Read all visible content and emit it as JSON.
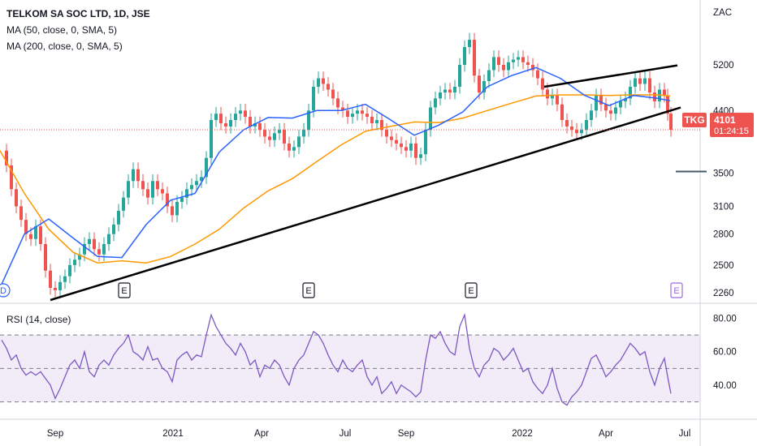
{
  "legend": {
    "title": "TELKOM SA SOC LTD, 1D, JSE",
    "ma50": "MA (50, close, 0, SMA, 5)",
    "ma200": "MA (200, close, 0, SMA, 5)",
    "rsi": "RSI (14, close)"
  },
  "price_tag": {
    "symbol": "TKG",
    "price": "4101",
    "countdown": "01:24:15"
  },
  "colors": {
    "up": "#26a69a",
    "down": "#ef5350",
    "ma50": "#2962ff",
    "ma200": "#ff9800",
    "trendline": "#000000",
    "rsi": "#7e57c2",
    "rsi_band": "#ede7f6",
    "price_line": "#ef5350"
  },
  "chart_data": {
    "type": "candlestick",
    "price_axis": {
      "unit": "ZAC",
      "ticks": [
        5200,
        4400,
        3500,
        3100,
        2800,
        2500,
        2260
      ],
      "scale": "log",
      "range": [
        2200,
        6400
      ]
    },
    "rsi_axis": {
      "ticks": [
        "80.00",
        "60.00",
        "40.00"
      ],
      "range": [
        23,
        87
      ],
      "bands": [
        70,
        50,
        30
      ]
    },
    "time_axis": {
      "labels": [
        "Sep",
        "2021",
        "Apr",
        "Jul",
        "Sep",
        "2022",
        "Apr",
        "Jul"
      ]
    },
    "last_price": 4101,
    "earnings_markers": [
      "E",
      "E",
      "E",
      "E"
    ],
    "dividend_marker": "D",
    "ma50_points": [
      [
        0,
        2300
      ],
      [
        30,
        2800
      ],
      [
        60,
        2960
      ],
      [
        90,
        2760
      ],
      [
        120,
        2580
      ],
      [
        150,
        2570
      ],
      [
        180,
        2900
      ],
      [
        210,
        3170
      ],
      [
        240,
        3250
      ],
      [
        270,
        3780
      ],
      [
        300,
        4100
      ],
      [
        330,
        4290
      ],
      [
        360,
        4280
      ],
      [
        390,
        4400
      ],
      [
        420,
        4400
      ],
      [
        450,
        4500
      ],
      [
        480,
        4260
      ],
      [
        510,
        4020
      ],
      [
        540,
        4170
      ],
      [
        570,
        4380
      ],
      [
        600,
        4800
      ],
      [
        630,
        5000
      ],
      [
        660,
        5150
      ],
      [
        690,
        4950
      ],
      [
        720,
        4650
      ],
      [
        750,
        4480
      ],
      [
        780,
        4650
      ],
      [
        810,
        4600
      ],
      [
        825,
        4560
      ]
    ],
    "ma200_points": [
      [
        0,
        3800
      ],
      [
        30,
        3250
      ],
      [
        60,
        2850
      ],
      [
        90,
        2620
      ],
      [
        120,
        2520
      ],
      [
        150,
        2540
      ],
      [
        180,
        2520
      ],
      [
        210,
        2580
      ],
      [
        240,
        2700
      ],
      [
        270,
        2850
      ],
      [
        300,
        3080
      ],
      [
        330,
        3280
      ],
      [
        360,
        3430
      ],
      [
        390,
        3650
      ],
      [
        420,
        3880
      ],
      [
        450,
        4080
      ],
      [
        480,
        4150
      ],
      [
        510,
        4220
      ],
      [
        540,
        4210
      ],
      [
        570,
        4280
      ],
      [
        600,
        4400
      ],
      [
        630,
        4520
      ],
      [
        660,
        4640
      ],
      [
        690,
        4660
      ],
      [
        720,
        4660
      ],
      [
        750,
        4650
      ],
      [
        780,
        4660
      ],
      [
        810,
        4660
      ],
      [
        825,
        4640
      ]
    ],
    "trendlines": [
      {
        "from": [
          62,
          2200
        ],
        "to": [
          838,
          4450
        ]
      },
      {
        "from": [
          670,
          4800
        ],
        "to": [
          834,
          5190
        ]
      }
    ],
    "price_path": [
      [
        2,
        3800
      ],
      [
        8,
        3600
      ],
      [
        14,
        3300
      ],
      [
        20,
        3100
      ],
      [
        26,
        2950
      ],
      [
        32,
        2800
      ],
      [
        38,
        2750
      ],
      [
        44,
        2880
      ],
      [
        50,
        2700
      ],
      [
        56,
        2450
      ],
      [
        62,
        2300
      ],
      [
        68,
        2280
      ],
      [
        74,
        2350
      ],
      [
        80,
        2400
      ],
      [
        86,
        2500
      ],
      [
        92,
        2550
      ],
      [
        98,
        2600
      ],
      [
        104,
        2700
      ],
      [
        110,
        2750
      ],
      [
        116,
        2650
      ],
      [
        122,
        2600
      ],
      [
        128,
        2700
      ],
      [
        134,
        2800
      ],
      [
        140,
        2900
      ],
      [
        146,
        3050
      ],
      [
        152,
        3200
      ],
      [
        158,
        3400
      ],
      [
        164,
        3550
      ],
      [
        170,
        3400
      ],
      [
        176,
        3300
      ],
      [
        182,
        3200
      ],
      [
        188,
        3400
      ],
      [
        194,
        3300
      ],
      [
        200,
        3250
      ],
      [
        206,
        3100
      ],
      [
        212,
        3000
      ],
      [
        218,
        3150
      ],
      [
        224,
        3200
      ],
      [
        230,
        3300
      ],
      [
        236,
        3350
      ],
      [
        242,
        3400
      ],
      [
        248,
        3450
      ],
      [
        254,
        3700
      ],
      [
        260,
        4250
      ],
      [
        266,
        4350
      ],
      [
        272,
        4200
      ],
      [
        278,
        4150
      ],
      [
        284,
        4250
      ],
      [
        290,
        4350
      ],
      [
        296,
        4400
      ],
      [
        302,
        4300
      ],
      [
        308,
        4150
      ],
      [
        314,
        4200
      ],
      [
        320,
        4100
      ],
      [
        326,
        4000
      ],
      [
        332,
        3950
      ],
      [
        338,
        4050
      ],
      [
        344,
        4100
      ],
      [
        350,
        3900
      ],
      [
        356,
        3800
      ],
      [
        362,
        3850
      ],
      [
        368,
        4000
      ],
      [
        374,
        4100
      ],
      [
        380,
        4400
      ],
      [
        386,
        4800
      ],
      [
        392,
        4950
      ],
      [
        398,
        4850
      ],
      [
        404,
        4750
      ],
      [
        410,
        4600
      ],
      [
        416,
        4450
      ],
      [
        422,
        4400
      ],
      [
        428,
        4300
      ],
      [
        434,
        4350
      ],
      [
        440,
        4400
      ],
      [
        446,
        4350
      ],
      [
        452,
        4300
      ],
      [
        458,
        4200
      ],
      [
        464,
        4250
      ],
      [
        470,
        4100
      ],
      [
        476,
        4000
      ],
      [
        482,
        3950
      ],
      [
        488,
        3900
      ],
      [
        494,
        3850
      ],
      [
        500,
        3800
      ],
      [
        506,
        3900
      ],
      [
        512,
        3700
      ],
      [
        518,
        3750
      ],
      [
        524,
        4100
      ],
      [
        530,
        4450
      ],
      [
        536,
        4600
      ],
      [
        542,
        4700
      ],
      [
        548,
        4750
      ],
      [
        554,
        4700
      ],
      [
        560,
        4800
      ],
      [
        566,
        5200
      ],
      [
        572,
        5550
      ],
      [
        578,
        5700
      ],
      [
        584,
        5000
      ],
      [
        590,
        4700
      ],
      [
        596,
        4900
      ],
      [
        602,
        5100
      ],
      [
        608,
        5350
      ],
      [
        614,
        5200
      ],
      [
        620,
        5100
      ],
      [
        626,
        5250
      ],
      [
        632,
        5300
      ],
      [
        638,
        5350
      ],
      [
        644,
        5250
      ],
      [
        650,
        5200
      ],
      [
        656,
        5100
      ],
      [
        662,
        4950
      ],
      [
        668,
        4750
      ],
      [
        674,
        4600
      ],
      [
        680,
        4650
      ],
      [
        686,
        4500
      ],
      [
        692,
        4250
      ],
      [
        698,
        4150
      ],
      [
        704,
        4100
      ],
      [
        710,
        4050
      ],
      [
        716,
        4100
      ],
      [
        722,
        4250
      ],
      [
        728,
        4400
      ],
      [
        734,
        4650
      ],
      [
        740,
        4500
      ],
      [
        746,
        4400
      ],
      [
        752,
        4350
      ],
      [
        758,
        4450
      ],
      [
        764,
        4550
      ],
      [
        770,
        4600
      ],
      [
        776,
        4800
      ],
      [
        782,
        4950
      ],
      [
        788,
        4850
      ],
      [
        794,
        4950
      ],
      [
        800,
        4700
      ],
      [
        806,
        4550
      ],
      [
        812,
        4750
      ],
      [
        818,
        4650
      ],
      [
        822,
        4350
      ],
      [
        826,
        4101
      ]
    ],
    "rsi_path": [
      [
        2,
        67
      ],
      [
        8,
        62
      ],
      [
        14,
        55
      ],
      [
        20,
        58
      ],
      [
        26,
        50
      ],
      [
        32,
        46
      ],
      [
        38,
        48
      ],
      [
        44,
        46
      ],
      [
        50,
        48
      ],
      [
        56,
        44
      ],
      [
        62,
        40
      ],
      [
        68,
        32
      ],
      [
        74,
        38
      ],
      [
        80,
        45
      ],
      [
        86,
        52
      ],
      [
        92,
        55
      ],
      [
        98,
        50
      ],
      [
        104,
        60
      ],
      [
        110,
        48
      ],
      [
        116,
        45
      ],
      [
        122,
        52
      ],
      [
        128,
        55
      ],
      [
        134,
        52
      ],
      [
        140,
        58
      ],
      [
        146,
        62
      ],
      [
        152,
        65
      ],
      [
        158,
        70
      ],
      [
        164,
        60
      ],
      [
        170,
        58
      ],
      [
        176,
        55
      ],
      [
        182,
        63
      ],
      [
        188,
        55
      ],
      [
        194,
        56
      ],
      [
        200,
        50
      ],
      [
        206,
        48
      ],
      [
        212,
        42
      ],
      [
        218,
        55
      ],
      [
        224,
        58
      ],
      [
        230,
        60
      ],
      [
        236,
        55
      ],
      [
        242,
        58
      ],
      [
        248,
        57
      ],
      [
        254,
        70
      ],
      [
        260,
        82
      ],
      [
        266,
        75
      ],
      [
        272,
        70
      ],
      [
        278,
        65
      ],
      [
        284,
        62
      ],
      [
        290,
        58
      ],
      [
        296,
        65
      ],
      [
        302,
        60
      ],
      [
        308,
        52
      ],
      [
        314,
        55
      ],
      [
        320,
        45
      ],
      [
        326,
        52
      ],
      [
        332,
        50
      ],
      [
        338,
        55
      ],
      [
        344,
        52
      ],
      [
        350,
        45
      ],
      [
        356,
        40
      ],
      [
        362,
        50
      ],
      [
        368,
        55
      ],
      [
        374,
        58
      ],
      [
        380,
        65
      ],
      [
        386,
        72
      ],
      [
        392,
        70
      ],
      [
        398,
        65
      ],
      [
        404,
        58
      ],
      [
        410,
        52
      ],
      [
        416,
        48
      ],
      [
        422,
        55
      ],
      [
        428,
        50
      ],
      [
        434,
        48
      ],
      [
        440,
        52
      ],
      [
        446,
        55
      ],
      [
        452,
        45
      ],
      [
        458,
        40
      ],
      [
        464,
        45
      ],
      [
        470,
        35
      ],
      [
        476,
        38
      ],
      [
        482,
        42
      ],
      [
        488,
        35
      ],
      [
        494,
        40
      ],
      [
        500,
        38
      ],
      [
        506,
        36
      ],
      [
        512,
        33
      ],
      [
        518,
        36
      ],
      [
        524,
        55
      ],
      [
        530,
        70
      ],
      [
        536,
        68
      ],
      [
        542,
        72
      ],
      [
        548,
        65
      ],
      [
        554,
        60
      ],
      [
        560,
        58
      ],
      [
        566,
        75
      ],
      [
        572,
        82
      ],
      [
        578,
        62
      ],
      [
        584,
        50
      ],
      [
        590,
        45
      ],
      [
        596,
        52
      ],
      [
        602,
        55
      ],
      [
        608,
        62
      ],
      [
        614,
        60
      ],
      [
        620,
        55
      ],
      [
        626,
        58
      ],
      [
        632,
        62
      ],
      [
        638,
        55
      ],
      [
        644,
        48
      ],
      [
        650,
        50
      ],
      [
        656,
        42
      ],
      [
        662,
        38
      ],
      [
        668,
        35
      ],
      [
        674,
        40
      ],
      [
        680,
        50
      ],
      [
        686,
        38
      ],
      [
        692,
        30
      ],
      [
        698,
        28
      ],
      [
        704,
        33
      ],
      [
        710,
        36
      ],
      [
        716,
        40
      ],
      [
        722,
        48
      ],
      [
        728,
        56
      ],
      [
        734,
        58
      ],
      [
        740,
        52
      ],
      [
        746,
        45
      ],
      [
        752,
        48
      ],
      [
        758,
        52
      ],
      [
        764,
        55
      ],
      [
        770,
        60
      ],
      [
        776,
        65
      ],
      [
        782,
        62
      ],
      [
        788,
        58
      ],
      [
        794,
        60
      ],
      [
        800,
        48
      ],
      [
        806,
        40
      ],
      [
        812,
        50
      ],
      [
        818,
        56
      ],
      [
        822,
        45
      ],
      [
        826,
        35
      ]
    ]
  }
}
